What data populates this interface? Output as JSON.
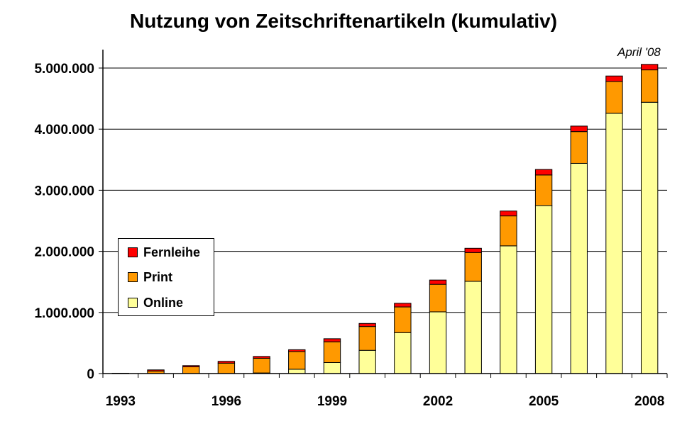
{
  "chart_data": {
    "type": "bar",
    "stacked": true,
    "title": "Nutzung von Zeitschriftenartikeln (kumulativ)",
    "annotation": "April '08",
    "categories": [
      "1993",
      "1994",
      "1995",
      "1996",
      "1997",
      "1998",
      "1999",
      "2000",
      "2001",
      "2002",
      "2003",
      "2004",
      "2005",
      "2006",
      "2007",
      "2008"
    ],
    "x_tick_labels": [
      "1993",
      "1996",
      "1999",
      "2002",
      "2005",
      "2008"
    ],
    "y_tick_labels": [
      "0",
      "1.000.000",
      "2.000.000",
      "3.000.000",
      "4.000.000",
      "5.000.000"
    ],
    "ylim": [
      0,
      5000000
    ],
    "grid": true,
    "legend_position": "left-center",
    "legend_order": [
      "Fernleihe",
      "Print",
      "Online"
    ],
    "series": [
      {
        "name": "Online",
        "color": "#ffff99",
        "values": [
          0,
          0,
          0,
          0,
          10000,
          70000,
          180000,
          380000,
          670000,
          1010000,
          1510000,
          2090000,
          2750000,
          3440000,
          4260000,
          4440000
        ]
      },
      {
        "name": "Print",
        "color": "#ff9900",
        "values": [
          5000,
          40000,
          110000,
          170000,
          240000,
          290000,
          340000,
          390000,
          420000,
          450000,
          470000,
          490000,
          500000,
          520000,
          520000,
          530000
        ]
      },
      {
        "name": "Fernleihe",
        "color": "#ff0000",
        "values": [
          0,
          20000,
          20000,
          30000,
          30000,
          30000,
          50000,
          50000,
          60000,
          70000,
          70000,
          80000,
          90000,
          90000,
          90000,
          90000
        ]
      }
    ]
  }
}
